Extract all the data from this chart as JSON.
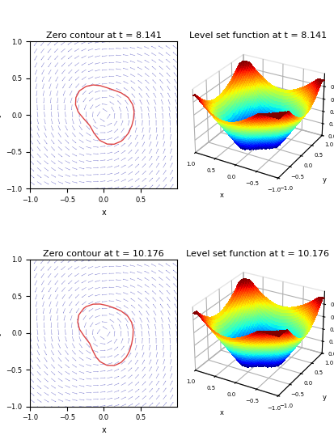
{
  "t1": 8.141,
  "t2": 10.176,
  "title_contour1": "Zero contour at t = 8.141",
  "title_contour2": "Zero contour at t = 10.176",
  "title_surf1": "Level set function at t = 8.141",
  "title_surf2": "Level set function at t = 10.176",
  "xlabel": "x",
  "ylabel": "y",
  "quiver_color": "#4444bb",
  "contour_color": "#dd4444",
  "grid_n": 22,
  "surf_n": 50,
  "bg_color": "#ffffff",
  "title_fontsize": 8,
  "axis_fontsize": 7,
  "tick_fontsize": 6
}
